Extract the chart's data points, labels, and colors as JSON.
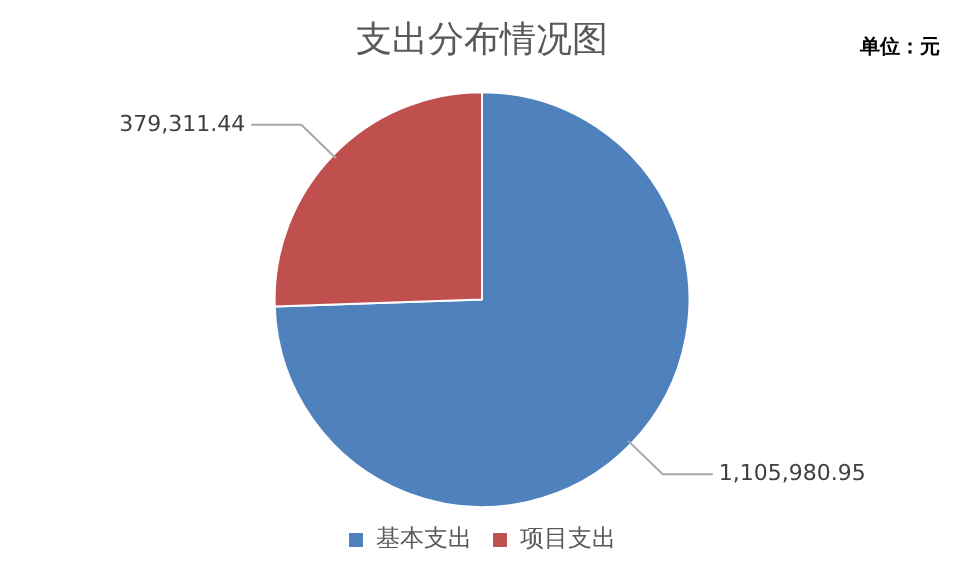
{
  "chart_data": {
    "type": "pie",
    "title": "支出分布情况图",
    "annotations": [
      "单位：元"
    ],
    "categories": [
      "基本支出",
      "项目支出"
    ],
    "values": [
      1105980.95,
      379311.44
    ],
    "value_labels": [
      "1,105,980.95",
      "379,311.44"
    ],
    "colors": [
      "#4f81bd",
      "#c0504d"
    ],
    "legend": "bottom"
  }
}
